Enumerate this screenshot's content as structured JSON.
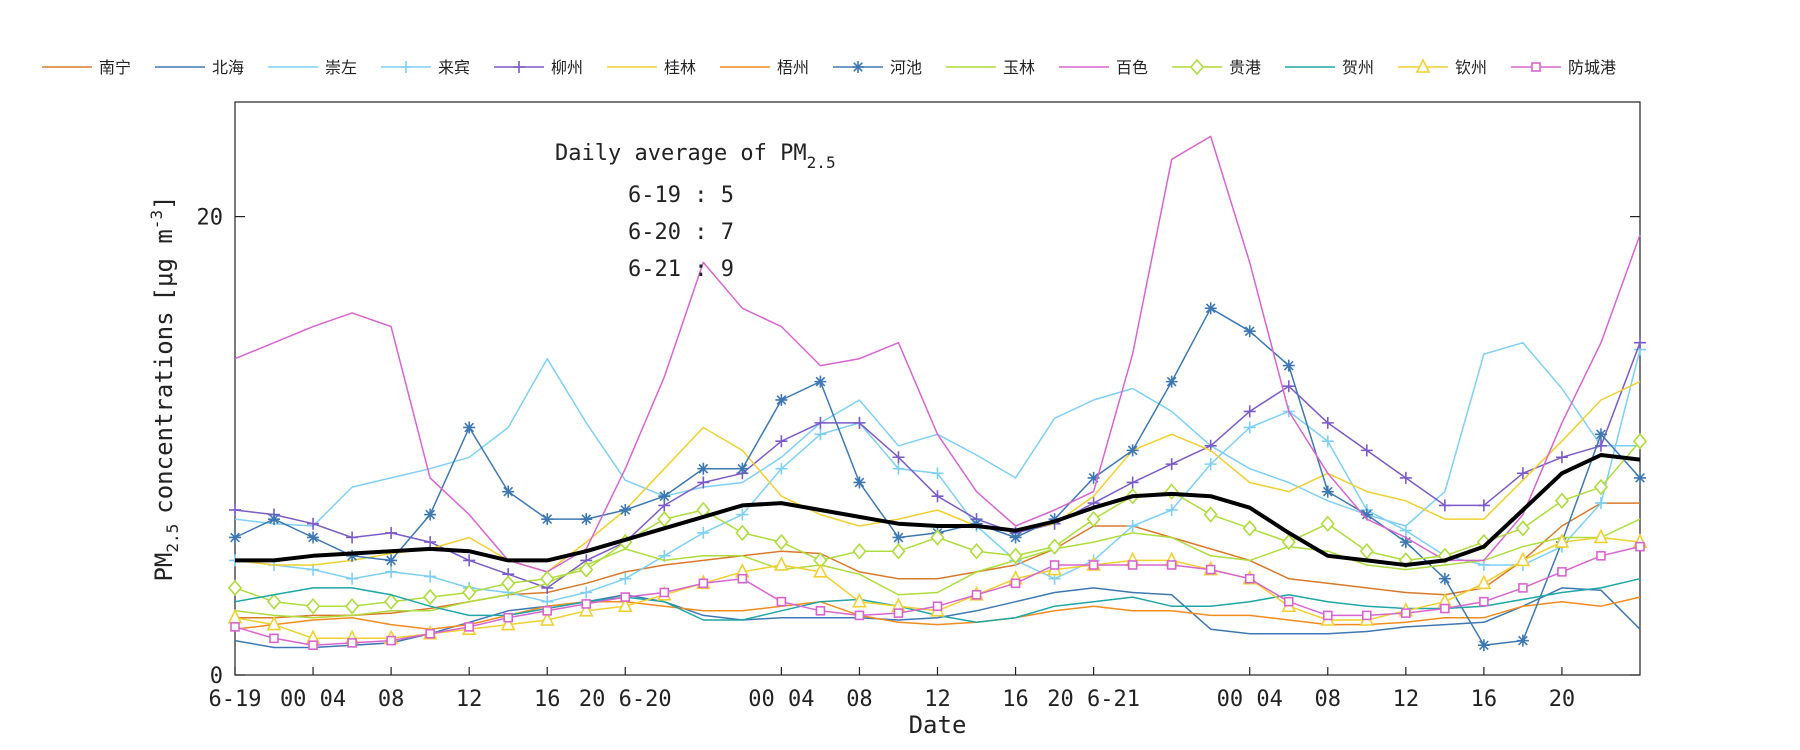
{
  "chart_data": {
    "type": "line",
    "xlabel": "Date",
    "ylabel": "concentrations",
    "ylabel_prefix": "PM",
    "ylabel_sub": "2.5",
    "ylabel_unit": "[μg m",
    "ylabel_unit_sup": "-3",
    "ylabel_unit_end": "]",
    "ylim": [
      0,
      25
    ],
    "yticks": [
      0,
      20
    ],
    "xlim": [
      0,
      72
    ],
    "x_ticks": [
      {
        "x": 0,
        "label": "6-19"
      },
      {
        "x": 4,
        "label": "00 04"
      },
      {
        "x": 8,
        "label": "08"
      },
      {
        "x": 12,
        "label": "12"
      },
      {
        "x": 16,
        "label": "16"
      },
      {
        "x": 20,
        "label": "20 6-20"
      },
      {
        "x": 28,
        "label": "00 04"
      },
      {
        "x": 32,
        "label": "08"
      },
      {
        "x": 36,
        "label": "12"
      },
      {
        "x": 40,
        "label": "16"
      },
      {
        "x": 44,
        "label": "20 6-21"
      },
      {
        "x": 52,
        "label": "00 04"
      },
      {
        "x": 56,
        "label": "08"
      },
      {
        "x": 60,
        "label": "12"
      },
      {
        "x": 64,
        "label": "16"
      },
      {
        "x": 68,
        "label": "20"
      }
    ],
    "grid": false,
    "legend_position": "top",
    "annotation": {
      "title": "Daily average of PM",
      "title_sub": "2.5",
      "lines": [
        "6-19 : 5",
        "6-20 : 7",
        "6-21 : 9"
      ]
    },
    "x": [
      0,
      2,
      4,
      6,
      8,
      10,
      12,
      14,
      16,
      18,
      20,
      22,
      24,
      26,
      28,
      30,
      32,
      34,
      36,
      38,
      40,
      42,
      44,
      46,
      48,
      50,
      52,
      54,
      56,
      58,
      60,
      62,
      64,
      66,
      68,
      70,
      72
    ],
    "series": [
      {
        "name": "南宁",
        "color": "#D97A2B",
        "marker": "none",
        "values": [
          2.5,
          2.5,
          2.6,
          2.6,
          2.7,
          2.9,
          3.2,
          3.5,
          3.6,
          4.0,
          4.5,
          4.8,
          5.0,
          5.2,
          5.4,
          5.3,
          4.5,
          4.2,
          4.2,
          4.5,
          4.8,
          5.5,
          6.5,
          6.5,
          6.0,
          5.5,
          5.0,
          4.2,
          4.0,
          3.8,
          3.6,
          3.5,
          3.8,
          5.0,
          6.5,
          7.5,
          7.5
        ]
      },
      {
        "name": "北海",
        "color": "#3E78B2",
        "marker": "none",
        "values": [
          1.5,
          1.2,
          1.2,
          1.3,
          1.4,
          1.8,
          2.3,
          2.8,
          3.0,
          3.2,
          3.5,
          3.2,
          2.6,
          2.4,
          2.5,
          2.5,
          2.5,
          2.4,
          2.5,
          2.8,
          3.2,
          3.6,
          3.8,
          3.6,
          3.5,
          2.0,
          1.8,
          1.8,
          1.8,
          1.9,
          2.1,
          2.2,
          2.3,
          3.0,
          3.8,
          3.7,
          2.0
        ]
      },
      {
        "name": "崇左",
        "color": "#7FCFF5",
        "marker": "none",
        "values": [
          6.8,
          6.6,
          6.5,
          8.2,
          8.6,
          9.0,
          9.5,
          10.8,
          13.8,
          11.0,
          8.5,
          7.8,
          8.2,
          8.4,
          9.5,
          11.0,
          12.0,
          10.0,
          10.5,
          9.6,
          8.6,
          11.2,
          12.0,
          12.5,
          11.5,
          10.0,
          9.0,
          8.4,
          7.6,
          7.0,
          6.5,
          8.0,
          14.0,
          14.5,
          12.5,
          10.0,
          10.0
        ]
      },
      {
        "name": "来宾",
        "color": "#7FCFF5",
        "marker": "plus",
        "values": [
          5.0,
          4.8,
          4.6,
          4.2,
          4.5,
          4.3,
          3.8,
          3.6,
          3.2,
          3.6,
          4.2,
          5.2,
          6.2,
          7.0,
          9.0,
          10.5,
          11.0,
          9.0,
          8.8,
          6.5,
          5.0,
          4.2,
          5.0,
          6.5,
          7.2,
          9.2,
          10.8,
          11.5,
          10.2,
          7.2,
          6.3,
          5.2,
          4.8,
          4.8,
          5.6,
          7.5,
          14.2
        ]
      },
      {
        "name": "柳州",
        "color": "#7B5BC8",
        "marker": "plus",
        "values": [
          7.2,
          7.0,
          6.6,
          6.0,
          6.2,
          5.8,
          5.0,
          4.4,
          3.8,
          5.0,
          5.8,
          7.4,
          8.4,
          8.8,
          10.2,
          11.0,
          11.0,
          9.5,
          7.8,
          6.8,
          6.2,
          6.6,
          7.5,
          8.4,
          9.2,
          10.0,
          11.5,
          12.6,
          11.0,
          9.8,
          8.6,
          7.4,
          7.4,
          8.8,
          9.5,
          10.0,
          14.5
        ]
      },
      {
        "name": "桂林",
        "color": "#F0D030",
        "marker": "none",
        "values": [
          5.0,
          4.8,
          4.8,
          5.0,
          5.3,
          5.5,
          6.0,
          5.0,
          4.5,
          5.8,
          7.2,
          9.0,
          10.8,
          9.8,
          7.8,
          7.0,
          6.5,
          6.8,
          7.2,
          6.5,
          6.3,
          6.6,
          7.8,
          9.8,
          10.5,
          9.8,
          8.4,
          8.0,
          8.8,
          8.0,
          7.6,
          6.8,
          6.8,
          8.5,
          10.2,
          12.0,
          12.8
        ]
      },
      {
        "name": "梧州",
        "color": "#F28C1E",
        "marker": "none",
        "values": [
          2.0,
          2.2,
          2.4,
          2.5,
          2.2,
          2.0,
          2.2,
          2.6,
          3.0,
          3.2,
          3.2,
          3.0,
          2.8,
          2.8,
          3.0,
          3.2,
          2.6,
          2.3,
          2.2,
          2.3,
          2.5,
          2.8,
          3.0,
          2.8,
          2.8,
          2.6,
          2.6,
          2.4,
          2.2,
          2.2,
          2.3,
          2.5,
          2.5,
          3.0,
          3.2,
          3.0,
          3.4
        ]
      },
      {
        "name": "河池",
        "color": "#3E78B2",
        "marker": "asterisk",
        "values": [
          6.0,
          6.8,
          6.0,
          5.2,
          5.0,
          7.0,
          10.8,
          8.0,
          6.8,
          6.8,
          7.2,
          7.8,
          9.0,
          9.0,
          12.0,
          12.8,
          8.4,
          6.0,
          6.2,
          6.6,
          6.0,
          6.8,
          8.6,
          9.8,
          12.8,
          16.0,
          15.0,
          13.5,
          8.0,
          7.0,
          5.8,
          4.2,
          1.3,
          1.5,
          5.8,
          10.5,
          8.6
        ]
      },
      {
        "name": "玉林",
        "color": "#AEDC3C",
        "marker": "none",
        "values": [
          2.8,
          2.6,
          2.5,
          2.6,
          2.8,
          2.8,
          3.2,
          3.5,
          4.0,
          4.8,
          5.5,
          5.0,
          5.2,
          5.2,
          4.6,
          4.8,
          4.4,
          3.5,
          3.6,
          4.5,
          5.0,
          5.5,
          5.8,
          6.2,
          6.0,
          5.2,
          5.0,
          5.6,
          5.4,
          4.8,
          4.6,
          4.8,
          5.0,
          5.6,
          6.0,
          6.0,
          6.8
        ]
      },
      {
        "name": "百色",
        "color": "#D865CF",
        "marker": "none",
        "values": [
          13.8,
          14.5,
          15.2,
          15.8,
          15.2,
          8.6,
          7.0,
          5.0,
          4.5,
          5.5,
          9.0,
          13.0,
          18.0,
          16.0,
          15.2,
          13.5,
          13.8,
          14.5,
          10.5,
          8.0,
          6.5,
          7.2,
          8.0,
          14.0,
          22.5,
          23.5,
          18.0,
          11.5,
          8.8,
          6.8,
          6.0,
          5.0,
          5.0,
          7.0,
          11.0,
          14.5,
          19.2
        ]
      },
      {
        "name": "贵港",
        "color": "#AEDC3C",
        "marker": "diamond",
        "values": [
          3.8,
          3.2,
          3.0,
          3.0,
          3.2,
          3.4,
          3.6,
          4.0,
          4.2,
          4.6,
          5.8,
          6.8,
          7.2,
          6.2,
          5.8,
          5.0,
          5.4,
          5.4,
          6.0,
          5.4,
          5.2,
          5.6,
          6.8,
          7.8,
          8.0,
          7.0,
          6.4,
          5.8,
          6.6,
          5.4,
          5.0,
          5.2,
          5.8,
          6.4,
          7.6,
          8.2,
          10.2
        ]
      },
      {
        "name": "贺州",
        "color": "#1FA6A6",
        "marker": "none",
        "values": [
          3.2,
          3.5,
          3.8,
          3.8,
          3.5,
          3.0,
          2.6,
          2.6,
          2.9,
          3.2,
          3.4,
          3.2,
          2.4,
          2.4,
          2.8,
          3.2,
          3.3,
          3.0,
          2.6,
          2.3,
          2.5,
          3.0,
          3.2,
          3.4,
          3.0,
          3.0,
          3.2,
          3.5,
          3.2,
          3.0,
          2.9,
          2.9,
          3.0,
          3.3,
          3.6,
          3.8,
          4.2
        ]
      },
      {
        "name": "钦州",
        "color": "#F0D030",
        "marker": "triangle",
        "values": [
          2.5,
          2.2,
          1.6,
          1.6,
          1.6,
          1.8,
          2.0,
          2.2,
          2.4,
          2.8,
          3.0,
          3.5,
          4.0,
          4.5,
          4.8,
          4.5,
          3.2,
          3.0,
          2.8,
          3.5,
          4.2,
          4.6,
          4.8,
          5.0,
          5.0,
          4.6,
          4.2,
          3.0,
          2.4,
          2.4,
          2.8,
          3.2,
          4.0,
          5.0,
          5.8,
          6.0,
          5.8
        ]
      },
      {
        "name": "防城港",
        "color": "#D865CF",
        "marker": "square",
        "values": [
          2.1,
          1.6,
          1.3,
          1.4,
          1.5,
          1.8,
          2.1,
          2.5,
          2.8,
          3.1,
          3.4,
          3.6,
          4.0,
          4.2,
          3.2,
          2.8,
          2.6,
          2.7,
          3.0,
          3.5,
          4.0,
          4.8,
          4.8,
          4.8,
          4.8,
          4.6,
          4.2,
          3.2,
          2.6,
          2.6,
          2.7,
          2.9,
          3.2,
          3.8,
          4.5,
          5.2,
          5.6
        ]
      },
      {
        "name": "",
        "color": "#000000",
        "marker": "none",
        "thick": true,
        "values": [
          5.0,
          5.0,
          5.2,
          5.3,
          5.4,
          5.5,
          5.4,
          5.0,
          5.0,
          5.4,
          5.9,
          6.4,
          6.9,
          7.4,
          7.5,
          7.2,
          6.9,
          6.6,
          6.5,
          6.5,
          6.3,
          6.7,
          7.3,
          7.8,
          7.9,
          7.8,
          7.3,
          6.2,
          5.2,
          5.0,
          4.8,
          5.0,
          5.6,
          7.2,
          8.8,
          9.6,
          9.4
        ]
      }
    ]
  }
}
